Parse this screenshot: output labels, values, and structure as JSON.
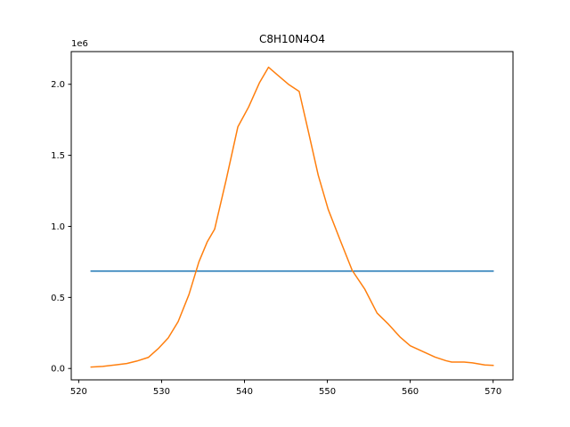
{
  "chart_data": {
    "type": "line",
    "title": "C8H10N4O4",
    "xlabel": "",
    "ylabel": "",
    "y_offset_label": "1e6",
    "xlim": [
      519.1,
      572.4
    ],
    "ylim": [
      -80000,
      2230000
    ],
    "x_ticks": [
      520,
      530,
      540,
      550,
      560,
      570
    ],
    "x_tick_labels": [
      "520",
      "530",
      "540",
      "550",
      "560",
      "570"
    ],
    "y_ticks": [
      0,
      500000,
      1000000,
      1500000,
      2000000
    ],
    "y_tick_labels": [
      "0.0",
      "0.5",
      "1.0",
      "1.5",
      "2.0"
    ],
    "grid": false,
    "legend": "none",
    "series": [
      {
        "color": "#1f77b4",
        "x": [
          521.5,
          570.0
        ],
        "y": [
          685000,
          685000
        ]
      },
      {
        "color": "#ff7f0e",
        "x": [
          521.5,
          522.9,
          524.4,
          525.8,
          527.0,
          528.4,
          529.6,
          530.8,
          532.0,
          533.3,
          534.5,
          535.5,
          536.4,
          537.8,
          539.2,
          540.5,
          541.8,
          542.9,
          544.1,
          545.3,
          546.6,
          547.7,
          548.9,
          550.1,
          551.5,
          553.0,
          554.5,
          556.0,
          557.4,
          558.8,
          560.0,
          561.5,
          563.0,
          564.3,
          565.0,
          566.5,
          567.5,
          569.0,
          570.0
        ],
        "y": [
          10000,
          15000,
          25000,
          35000,
          52000,
          78000,
          140000,
          215000,
          330000,
          520000,
          750000,
          890000,
          980000,
          1330000,
          1700000,
          1840000,
          2010000,
          2120000,
          2060000,
          2000000,
          1950000,
          1670000,
          1360000,
          1120000,
          910000,
          690000,
          560000,
          390000,
          310000,
          220000,
          160000,
          120000,
          80000,
          55000,
          45000,
          45000,
          40000,
          25000,
          22000
        ]
      }
    ]
  }
}
